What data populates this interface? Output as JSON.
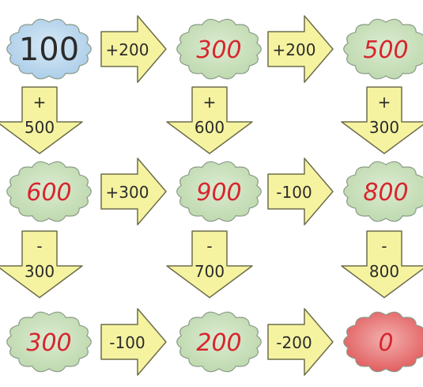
{
  "puzzle": {
    "rows": [
      {
        "clouds": [
          {
            "value": "100",
            "color": "blue",
            "style": "print"
          },
          {
            "value": "300",
            "color": "green",
            "style": "hand"
          },
          {
            "value": "500",
            "color": "green",
            "style": "hand"
          }
        ],
        "ops": [
          "+200",
          "+200"
        ]
      },
      {
        "clouds": [
          {
            "value": "600",
            "color": "green",
            "style": "hand"
          },
          {
            "value": "900",
            "color": "green",
            "style": "hand"
          },
          {
            "value": "800",
            "color": "green",
            "style": "hand"
          }
        ],
        "ops": [
          "+300",
          "-100"
        ]
      },
      {
        "clouds": [
          {
            "value": "300",
            "color": "green",
            "style": "hand"
          },
          {
            "value": "200",
            "color": "green",
            "style": "hand"
          },
          {
            "value": "0",
            "color": "red",
            "style": "hand"
          }
        ],
        "ops": [
          "-100",
          "-200"
        ]
      }
    ],
    "down_arrows": [
      [
        {
          "sign": "+",
          "amount": "500"
        },
        {
          "sign": "+",
          "amount": "600"
        },
        {
          "sign": "+",
          "amount": "300"
        }
      ],
      [
        {
          "sign": "-",
          "amount": "300"
        },
        {
          "sign": "-",
          "amount": "700"
        },
        {
          "sign": "-",
          "amount": "800"
        }
      ]
    ]
  },
  "colors": {
    "blue_fill": "#a9cce8",
    "green_fill": "#bcd8ac",
    "red_fill": "#e0585a",
    "arrow_fill": "#f6f3a0",
    "arrow_stroke": "#6d6d4c",
    "print_text": "#2b2b2b",
    "hand_text": "#d7262e"
  }
}
